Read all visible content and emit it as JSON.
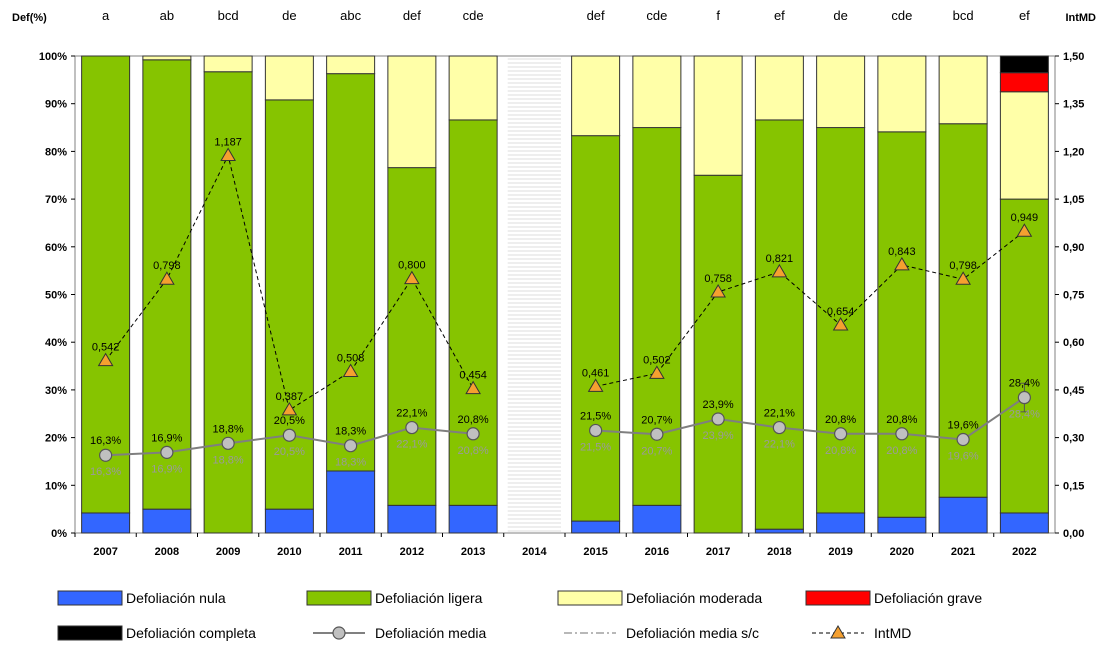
{
  "chart_data": {
    "type": "bar",
    "stacked": true,
    "left_axis_label": "Def(%)",
    "right_axis_label": "IntMD",
    "y_left_ticks": [
      "0%",
      "10%",
      "20%",
      "30%",
      "40%",
      "50%",
      "60%",
      "70%",
      "80%",
      "90%",
      "100%"
    ],
    "y_right_ticks": [
      "0,00",
      "0,15",
      "0,30",
      "0,45",
      "0,60",
      "0,75",
      "0,90",
      "1,05",
      "1,20",
      "1,35",
      "1,50"
    ],
    "categories": [
      "2007",
      "2008",
      "2009",
      "2010",
      "2011",
      "2012",
      "2013",
      "2014",
      "2015",
      "2016",
      "2017",
      "2018",
      "2019",
      "2020",
      "2021",
      "2022"
    ],
    "significance_groups": [
      "a",
      "ab",
      "bcd",
      "de",
      "abc",
      "def",
      "cde",
      "",
      "def",
      "cde",
      "f",
      "ef",
      "de",
      "cde",
      "bcd",
      "ef"
    ],
    "series": [
      {
        "name": "Defoliación nula",
        "color": "#3366ff",
        "values": [
          4.2,
          5.0,
          0,
          5.0,
          13.0,
          5.8,
          5.8,
          null,
          2.5,
          5.8,
          0,
          0.8,
          4.2,
          3.3,
          7.5,
          4.2
        ]
      },
      {
        "name": "Defoliación ligera",
        "color": "#86c400",
        "values": [
          95.8,
          94.2,
          96.7,
          85.8,
          83.3,
          70.8,
          80.8,
          null,
          80.8,
          79.2,
          75.0,
          85.8,
          80.8,
          80.8,
          78.3,
          65.8
        ]
      },
      {
        "name": "Defoliación moderada",
        "color": "#ffffa8",
        "values": [
          0,
          0.8,
          3.3,
          9.2,
          3.7,
          23.4,
          13.4,
          null,
          16.7,
          15.0,
          25.0,
          13.4,
          15.0,
          15.9,
          14.2,
          22.5
        ]
      },
      {
        "name": "Defoliación grave",
        "color": "#ff0000",
        "values": [
          0,
          0,
          0,
          0,
          0,
          0,
          0,
          null,
          0,
          0,
          0,
          0,
          0,
          0,
          0,
          4.0
        ]
      },
      {
        "name": "Defoliación completa",
        "color": "#000000",
        "values": [
          0,
          0,
          0,
          0,
          0,
          0,
          0,
          null,
          0,
          0,
          0,
          0,
          0,
          0,
          0,
          3.5
        ]
      }
    ],
    "defoliacion_media": [
      16.3,
      16.9,
      18.8,
      20.5,
      18.3,
      22.1,
      20.8,
      null,
      21.5,
      20.7,
      23.9,
      22.1,
      20.8,
      20.8,
      19.6,
      28.4
    ],
    "defoliacion_media_labels": [
      "16,3%",
      "16,9%",
      "18,8%",
      "20,5%",
      "18,3%",
      "22,1%",
      "20,8%",
      "",
      "21,5%",
      "20,7%",
      "23,9%",
      "22,1%",
      "20,8%",
      "20,8%",
      "19,6%",
      "28,4%"
    ],
    "defoliacion_media_sc_labels": [
      "16,3%",
      "16,9%",
      "18,8%",
      "20,5%",
      "18,3%",
      "22,1%",
      "20,8%",
      "",
      "21,5%",
      "20,7%",
      "23,9%",
      "22,1%",
      "20,8%",
      "20,8%",
      "19,6%",
      "28,4%"
    ],
    "defoliacion_media_error_2022": 3.0,
    "intmd": [
      0.542,
      0.798,
      1.187,
      0.387,
      0.508,
      0.8,
      0.454,
      null,
      0.461,
      0.502,
      0.758,
      0.821,
      0.654,
      0.843,
      0.798,
      0.949
    ],
    "intmd_labels": [
      "0,542",
      "0,798",
      "1,187",
      "0,387",
      "0,508",
      "0,800",
      "0,454",
      "",
      "0,461",
      "0,502",
      "0,758",
      "0,821",
      "0,654",
      "0,843",
      "0,798",
      "0,949"
    ],
    "y_left_range": [
      0,
      100
    ],
    "y_right_range": [
      0,
      1.5
    ],
    "legend": [
      {
        "name": "Defoliación nula",
        "kind": "bar",
        "color": "#3366ff"
      },
      {
        "name": "Defoliación ligera",
        "kind": "bar",
        "color": "#86c400"
      },
      {
        "name": "Defoliación moderada",
        "kind": "bar",
        "color": "#ffffa8"
      },
      {
        "name": "Defoliación grave",
        "kind": "bar",
        "color": "#ff0000"
      },
      {
        "name": "Defoliación completa",
        "kind": "bar",
        "color": "#000000"
      },
      {
        "name": "Defoliación media",
        "kind": "line-circle",
        "color": "#808080"
      },
      {
        "name": "Defoliación media s/c",
        "kind": "dashdot",
        "color": "#a0a0a0"
      },
      {
        "name": "IntMD",
        "kind": "dashed-triangle",
        "color": "#000000"
      }
    ],
    "legend_position": "bottom",
    "grid": false
  }
}
